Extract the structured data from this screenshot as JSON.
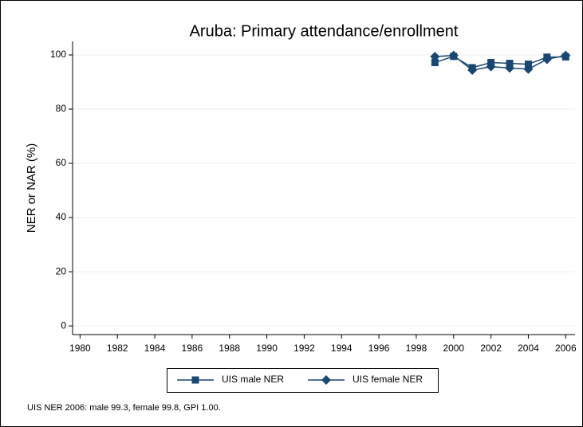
{
  "chart_data": {
    "type": "line",
    "title": "Aruba: Primary attendance/enrollment",
    "y_label": "NER or NAR (%)",
    "note": "UIS NER 2006: male 99.3, female 99.8, GPI 1.00.",
    "x": [
      1999,
      2000,
      2001,
      2002,
      2003,
      2004,
      2005,
      2006
    ],
    "series": [
      {
        "name": "UIS male NER",
        "color": "#1a476f",
        "marker": "square",
        "values": [
          97.2,
          99.5,
          95.3,
          97.2,
          96.9,
          96.6,
          99.2,
          99.3
        ]
      },
      {
        "name": "UIS female NER",
        "color": "#1a476f",
        "marker": "diamond",
        "values": [
          99.4,
          99.8,
          94.4,
          95.7,
          95.2,
          94.8,
          98.4,
          99.8
        ]
      }
    ],
    "xlim": [
      1979.6,
      2006.5
    ],
    "xticks": [
      1980,
      1982,
      1984,
      1986,
      1988,
      1990,
      1992,
      1994,
      1996,
      1998,
      2000,
      2002,
      2004,
      2006
    ],
    "ylim": [
      -3.2,
      105
    ],
    "yticks": [
      0,
      20,
      40,
      60,
      80,
      100
    ],
    "grid": true,
    "legend": "bottom"
  }
}
